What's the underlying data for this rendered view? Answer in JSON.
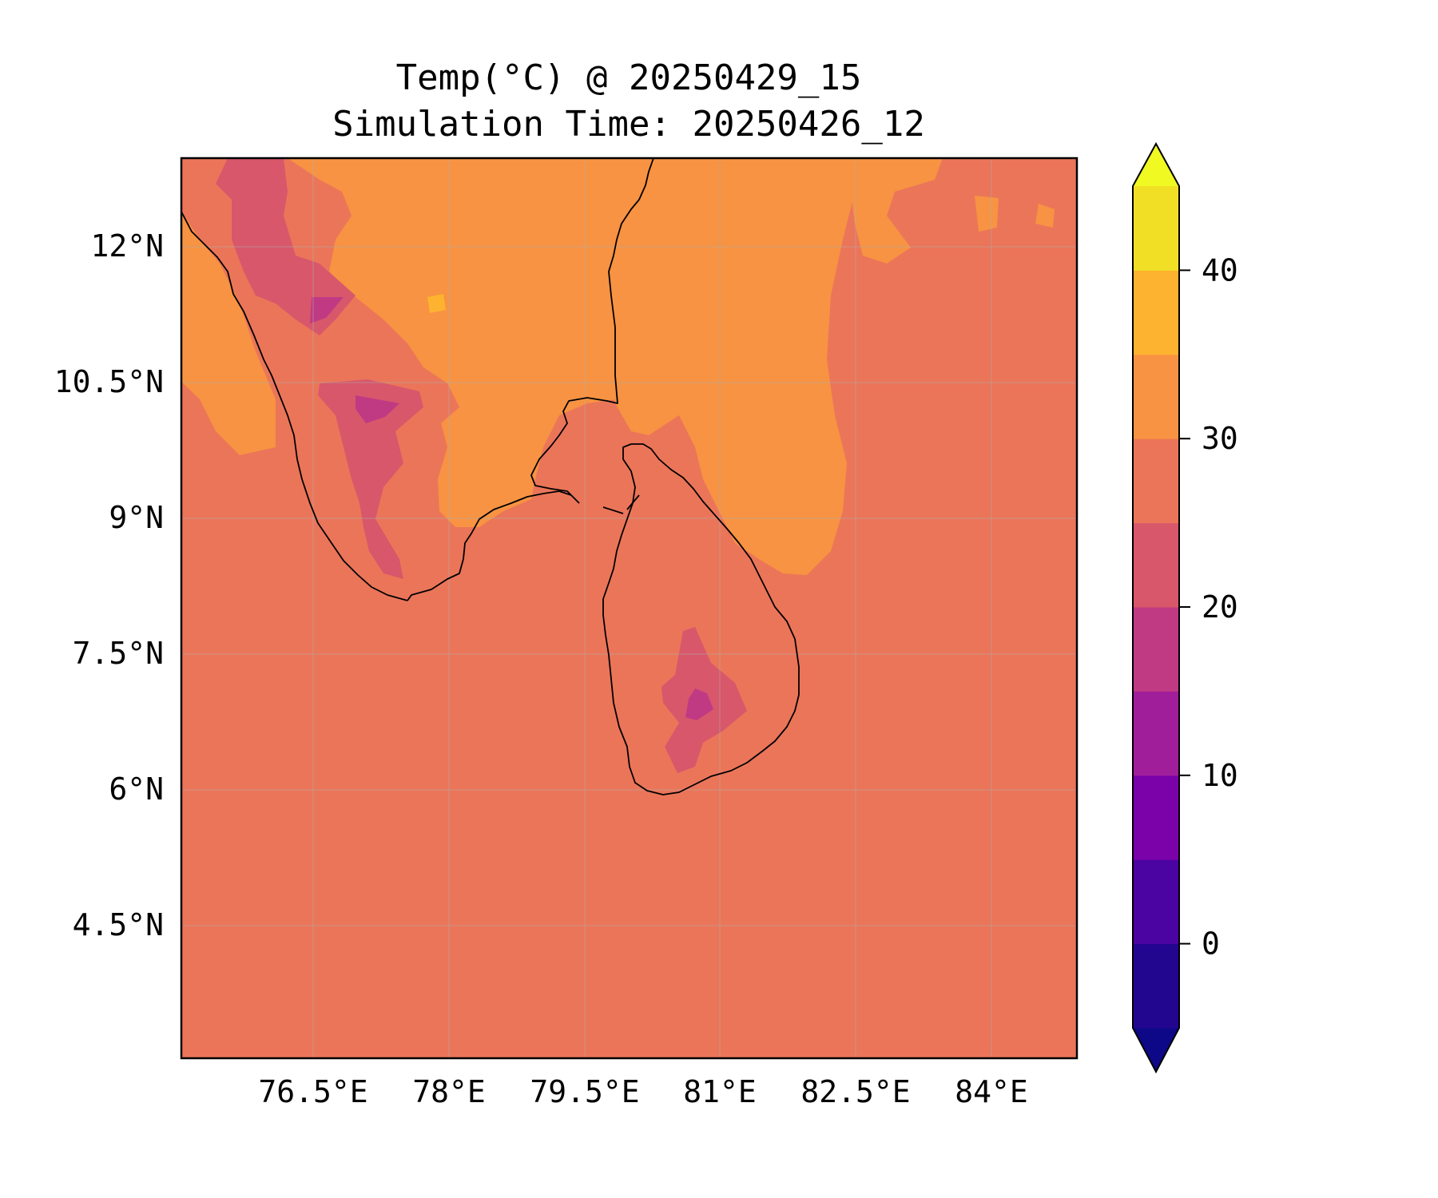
{
  "title": {
    "line1": "Temp(°C) @ 20250429_15",
    "line2": "Simulation Time: 20250426_12"
  },
  "map": {
    "lat_ticks": [
      "12°N",
      "10.5°N",
      "9°N",
      "7.5°N",
      "6°N",
      "4.5°N"
    ],
    "lon_ticks": [
      "76.5°E",
      "78°E",
      "79.5°E",
      "81°E",
      "82.5°E",
      "84°E"
    ],
    "lon_range": [
      75.0,
      85.0
    ],
    "lat_range": [
      3.0,
      13.0
    ],
    "gridlines": true,
    "background_color": "#eb7559"
  },
  "colorbar": {
    "colormap": "plasma",
    "range": [
      -5,
      45
    ],
    "step": 5,
    "extend": "both",
    "tick_labels": [
      "0",
      "10",
      "20",
      "30",
      "40"
    ],
    "tick_values": [
      0,
      10,
      20,
      30,
      40
    ],
    "colors": [
      "#220690",
      "#4b03a1",
      "#7a02a8",
      "#a11e9b",
      "#c03a83",
      "#d8576b",
      "#eb7559",
      "#f79342",
      "#fdb32f",
      "#f0df25"
    ],
    "under_color": "#0d0887",
    "over_color": "#f0f921"
  }
}
